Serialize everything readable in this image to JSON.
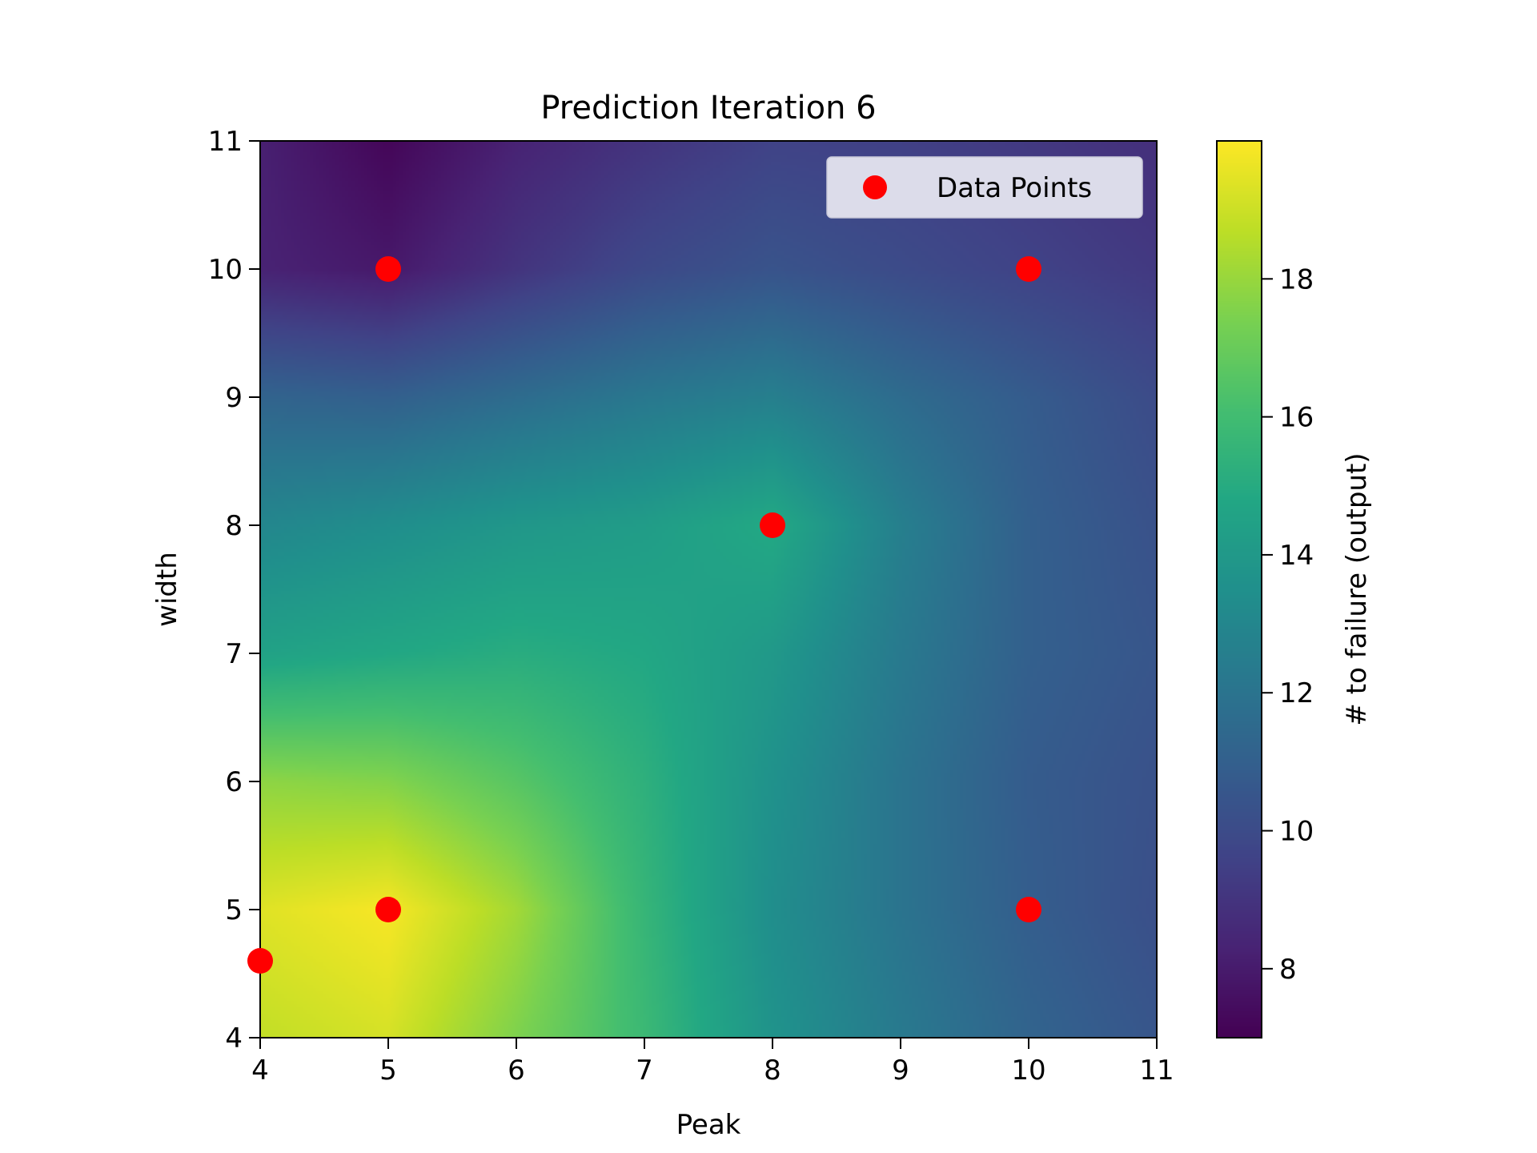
{
  "chart_data": {
    "type": "heatmap",
    "title": "Prediction Iteration 6",
    "xlabel": "Peak",
    "ylabel": "width",
    "xlim": [
      4,
      11
    ],
    "ylim": [
      4,
      11
    ],
    "x_ticks": [
      "4",
      "5",
      "6",
      "7",
      "8",
      "9",
      "10",
      "11"
    ],
    "y_ticks": [
      "4",
      "5",
      "6",
      "7",
      "8",
      "9",
      "10",
      "11"
    ],
    "colorbar": {
      "label": "# to failure (output)",
      "range": [
        7.0,
        20.0
      ],
      "ticks": [
        "8",
        "10",
        "12",
        "14",
        "16",
        "18"
      ],
      "colormap": "viridis"
    },
    "legend": {
      "position": "top-right",
      "entries": [
        "Data Points"
      ]
    },
    "series": [
      {
        "name": "Data Points",
        "kind": "scatter",
        "color": "#ff0000",
        "points": [
          {
            "x": 5,
            "y": 10
          },
          {
            "x": 10,
            "y": 10
          },
          {
            "x": 8,
            "y": 8
          },
          {
            "x": 5,
            "y": 5
          },
          {
            "x": 10,
            "y": 5
          },
          {
            "x": 4,
            "y": 4.6
          }
        ]
      }
    ],
    "surface": {
      "description": "predicted output grid (values in colorbar units)",
      "x": [
        4,
        5,
        6,
        7,
        8,
        9,
        10,
        11
      ],
      "y": [
        4,
        5,
        6,
        7,
        8,
        9,
        10,
        11
      ],
      "z": [
        [
          18.8,
          19.2,
          17.5,
          15.8,
          13.7,
          12.3,
          11.2,
          10.5
        ],
        [
          19.4,
          19.9,
          18.2,
          15.6,
          13.4,
          12.0,
          10.9,
          10.2
        ],
        [
          17.8,
          17.6,
          16.6,
          15.3,
          13.6,
          12.0,
          10.8,
          10.3
        ],
        [
          14.5,
          14.8,
          15.1,
          14.8,
          14.0,
          12.3,
          11.0,
          10.5
        ],
        [
          13.0,
          13.4,
          13.9,
          14.2,
          14.9,
          12.6,
          11.0,
          10.3
        ],
        [
          11.2,
          11.0,
          11.6,
          12.2,
          12.6,
          11.6,
          10.8,
          10.0
        ],
        [
          8.3,
          7.9,
          9.0,
          9.9,
          10.4,
          10.0,
          9.6,
          9.2
        ],
        [
          8.2,
          7.2,
          8.3,
          9.0,
          9.6,
          9.5,
          9.2,
          8.8
        ]
      ]
    }
  }
}
